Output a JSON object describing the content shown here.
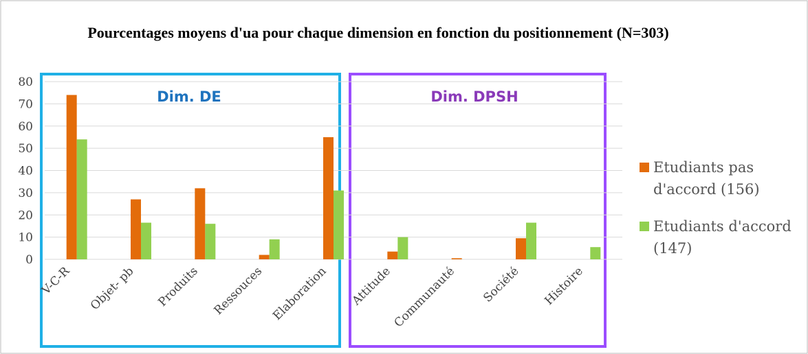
{
  "chart_data": {
    "type": "bar",
    "title": "Pourcentages moyens d'ua pour chaque dimension en fonction du positionnement (N=303)",
    "annotations": [
      "Dim. DE",
      "Dim. DPSH"
    ],
    "categories": [
      "V-C-R",
      "Objet- pb",
      "Produits",
      "Ressouces",
      "Elaboration",
      "Attitude",
      "Communauté",
      "Société",
      "Histoire"
    ],
    "series": [
      {
        "name": "Etudiants pas d'accord (156)",
        "color": "#e36c0a",
        "values": [
          74,
          27,
          32,
          2,
          55,
          3.5,
          0.5,
          9.5,
          0
        ]
      },
      {
        "name": "Etudiants d'accord (147)",
        "color": "#92d050",
        "values": [
          54,
          16.5,
          16,
          9,
          31,
          10,
          0,
          16.5,
          5.5
        ]
      }
    ],
    "ylim": [
      0,
      80
    ],
    "yticks": [
      0,
      10,
      20,
      30,
      40,
      50,
      60,
      70,
      80
    ],
    "grid": true,
    "legend": "right"
  }
}
